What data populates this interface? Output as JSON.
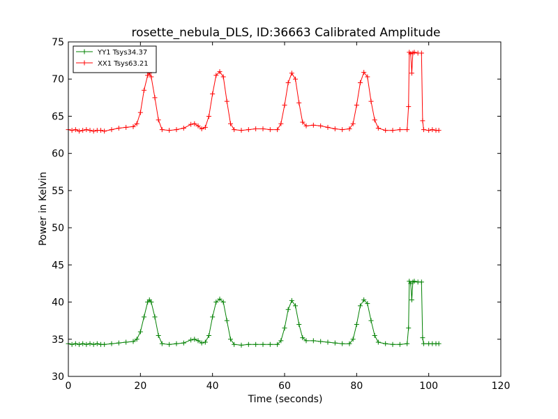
{
  "chart_data": {
    "type": "line",
    "title": "rosette_nebula_DLS, ID:36663 Calibrated Amplitude",
    "xlabel": "Time (seconds)",
    "ylabel": "Power in Kelvin",
    "xlim": [
      0,
      120
    ],
    "ylim": [
      30,
      75
    ],
    "xticks": [
      0,
      20,
      40,
      60,
      80,
      100,
      120
    ],
    "yticks": [
      30,
      35,
      40,
      45,
      50,
      55,
      60,
      65,
      70,
      75
    ],
    "grid": false,
    "legend_position": "top-left",
    "marker": "plus",
    "series": [
      {
        "name": "YY1 Tsys34.37",
        "color": "#008000",
        "points": [
          [
            0,
            34.4
          ],
          [
            1,
            34.3
          ],
          [
            2,
            34.4
          ],
          [
            3,
            34.3
          ],
          [
            4,
            34.4
          ],
          [
            5,
            34.3
          ],
          [
            6,
            34.4
          ],
          [
            7,
            34.3
          ],
          [
            8,
            34.4
          ],
          [
            9,
            34.3
          ],
          [
            10,
            34.3
          ],
          [
            12,
            34.4
          ],
          [
            14,
            34.5
          ],
          [
            16,
            34.6
          ],
          [
            18,
            34.7
          ],
          [
            19,
            35.0
          ],
          [
            20,
            36.0
          ],
          [
            21,
            38.0
          ],
          [
            22,
            40.0
          ],
          [
            22.5,
            40.3
          ],
          [
            23,
            40.0
          ],
          [
            24,
            38.0
          ],
          [
            25,
            35.5
          ],
          [
            26,
            34.4
          ],
          [
            28,
            34.3
          ],
          [
            30,
            34.4
          ],
          [
            32,
            34.5
          ],
          [
            34,
            34.9
          ],
          [
            35,
            35.0
          ],
          [
            36,
            34.8
          ],
          [
            37,
            34.5
          ],
          [
            38,
            34.6
          ],
          [
            39,
            35.5
          ],
          [
            40,
            38.0
          ],
          [
            41,
            40.0
          ],
          [
            42,
            40.4
          ],
          [
            43,
            40.0
          ],
          [
            44,
            37.5
          ],
          [
            45,
            35.0
          ],
          [
            46,
            34.3
          ],
          [
            48,
            34.2
          ],
          [
            50,
            34.3
          ],
          [
            52,
            34.3
          ],
          [
            54,
            34.3
          ],
          [
            56,
            34.3
          ],
          [
            58,
            34.3
          ],
          [
            59,
            34.8
          ],
          [
            60,
            36.5
          ],
          [
            61,
            39.0
          ],
          [
            62,
            40.2
          ],
          [
            63,
            39.5
          ],
          [
            64,
            37.0
          ],
          [
            65,
            35.2
          ],
          [
            66,
            34.8
          ],
          [
            68,
            34.8
          ],
          [
            70,
            34.7
          ],
          [
            72,
            34.6
          ],
          [
            74,
            34.5
          ],
          [
            76,
            34.4
          ],
          [
            78,
            34.4
          ],
          [
            79,
            35.0
          ],
          [
            80,
            37.0
          ],
          [
            81,
            39.5
          ],
          [
            82,
            40.3
          ],
          [
            83,
            39.8
          ],
          [
            84,
            37.5
          ],
          [
            85,
            35.5
          ],
          [
            86,
            34.6
          ],
          [
            88,
            34.4
          ],
          [
            90,
            34.3
          ],
          [
            92,
            34.3
          ],
          [
            94,
            34.4
          ],
          [
            94.4,
            36.5
          ],
          [
            94.6,
            42.8
          ],
          [
            95,
            42.5
          ],
          [
            95.3,
            40.3
          ],
          [
            95.6,
            42.7
          ],
          [
            96,
            42.8
          ],
          [
            97,
            42.7
          ],
          [
            98,
            42.7
          ],
          [
            98.3,
            35.2
          ],
          [
            98.6,
            34.4
          ],
          [
            100,
            34.4
          ],
          [
            101,
            34.4
          ],
          [
            102,
            34.4
          ],
          [
            102.8,
            34.4
          ]
        ]
      },
      {
        "name": "XX1 Tsys63.21",
        "color": "#ff0000",
        "points": [
          [
            0,
            63.2
          ],
          [
            1,
            63.1
          ],
          [
            2,
            63.2
          ],
          [
            3,
            63.0
          ],
          [
            4,
            63.1
          ],
          [
            5,
            63.2
          ],
          [
            6,
            63.1
          ],
          [
            7,
            63.0
          ],
          [
            8,
            63.1
          ],
          [
            9,
            63.1
          ],
          [
            10,
            63.0
          ],
          [
            12,
            63.2
          ],
          [
            14,
            63.4
          ],
          [
            16,
            63.5
          ],
          [
            18,
            63.6
          ],
          [
            19,
            64.0
          ],
          [
            20,
            65.5
          ],
          [
            21,
            68.5
          ],
          [
            22,
            70.5
          ],
          [
            22.5,
            70.8
          ],
          [
            23,
            70.3
          ],
          [
            24,
            67.5
          ],
          [
            25,
            64.5
          ],
          [
            26,
            63.2
          ],
          [
            28,
            63.1
          ],
          [
            30,
            63.2
          ],
          [
            32,
            63.4
          ],
          [
            34,
            63.9
          ],
          [
            35,
            64.0
          ],
          [
            36,
            63.7
          ],
          [
            37,
            63.3
          ],
          [
            38,
            63.5
          ],
          [
            39,
            65.0
          ],
          [
            40,
            68.0
          ],
          [
            41,
            70.5
          ],
          [
            42,
            71.0
          ],
          [
            43,
            70.3
          ],
          [
            44,
            67.0
          ],
          [
            45,
            64.0
          ],
          [
            46,
            63.2
          ],
          [
            48,
            63.1
          ],
          [
            50,
            63.2
          ],
          [
            52,
            63.3
          ],
          [
            54,
            63.3
          ],
          [
            56,
            63.2
          ],
          [
            58,
            63.2
          ],
          [
            59,
            64.0
          ],
          [
            60,
            66.5
          ],
          [
            61,
            69.5
          ],
          [
            62,
            70.8
          ],
          [
            63,
            70.0
          ],
          [
            64,
            66.8
          ],
          [
            65,
            64.2
          ],
          [
            66,
            63.7
          ],
          [
            68,
            63.8
          ],
          [
            70,
            63.7
          ],
          [
            72,
            63.5
          ],
          [
            74,
            63.3
          ],
          [
            76,
            63.2
          ],
          [
            78,
            63.3
          ],
          [
            79,
            64.0
          ],
          [
            80,
            66.5
          ],
          [
            81,
            69.5
          ],
          [
            82,
            70.9
          ],
          [
            83,
            70.3
          ],
          [
            84,
            67.0
          ],
          [
            85,
            64.5
          ],
          [
            86,
            63.4
          ],
          [
            88,
            63.1
          ],
          [
            90,
            63.1
          ],
          [
            92,
            63.2
          ],
          [
            94,
            63.2
          ],
          [
            94.4,
            66.3
          ],
          [
            94.6,
            73.6
          ],
          [
            95,
            73.4
          ],
          [
            95.3,
            70.8
          ],
          [
            95.6,
            73.5
          ],
          [
            96,
            73.6
          ],
          [
            97,
            73.5
          ],
          [
            98,
            73.5
          ],
          [
            98.3,
            64.4
          ],
          [
            98.6,
            63.2
          ],
          [
            100,
            63.1
          ],
          [
            101,
            63.2
          ],
          [
            102,
            63.1
          ],
          [
            102.8,
            63.1
          ]
        ]
      }
    ]
  }
}
